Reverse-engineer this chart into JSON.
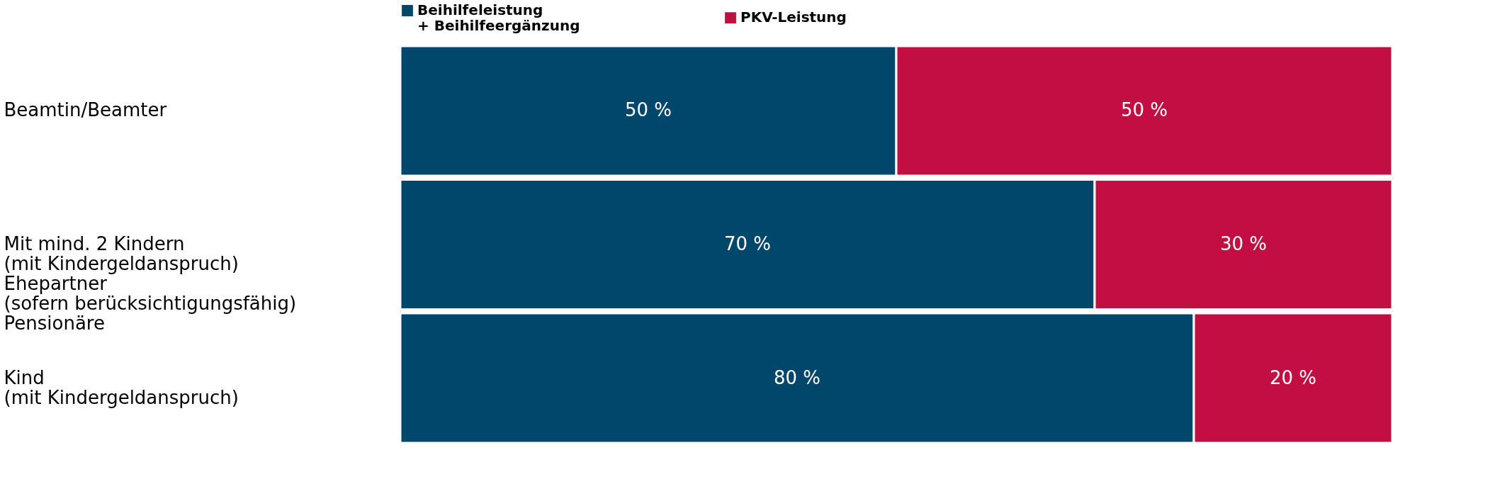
{
  "chart_data": {
    "type": "bar",
    "orientation": "horizontal",
    "stacked": true,
    "legend": "top",
    "tick_labels": "y",
    "categories": [
      "Beamtin/Beamter",
      "Mit mind. 2 Kindern\n(mit Kindergeldanspruch)\nEhepartner\n(sofern berücksichtigungsfähig)\nPensionäre",
      "Kind\n(mit Kindergeldanspruch)"
    ],
    "series": [
      {
        "name": "Beihilfeleistung\n+ Beihilfeergänzung",
        "color": "#00476b",
        "values": [
          50,
          70,
          80
        ],
        "value_labels": [
          "50 %",
          "70 %",
          "80 %"
        ]
      },
      {
        "name": "PKV-Leistung",
        "color": "#c20e40",
        "values": [
          50,
          30,
          20
        ],
        "value_labels": [
          "50 %",
          "30 %",
          "20 %"
        ]
      }
    ]
  }
}
